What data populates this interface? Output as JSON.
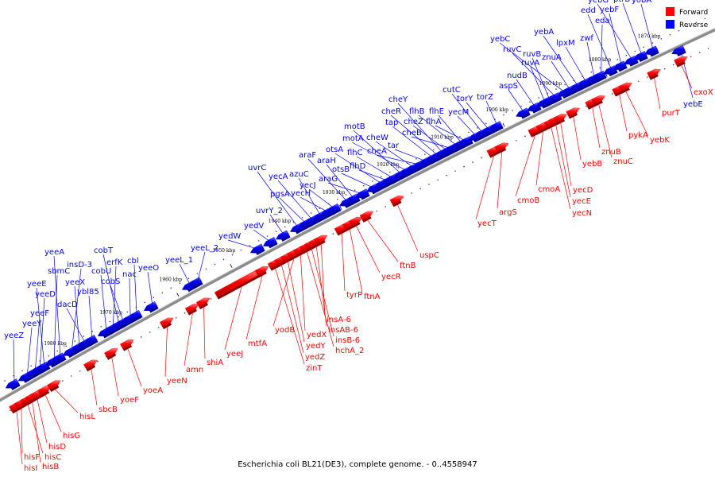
{
  "caption": "Escherichia coli BL21(DE3), complete genome. - 0..4558947",
  "legend": [
    {
      "label": "Forward",
      "color": "#ff0000"
    },
    {
      "label": "Reverse",
      "color": "#0000ff"
    }
  ],
  "colors": {
    "forward": "#ff0000",
    "reverse": "#0000ff",
    "backbone": "#888888"
  },
  "ticks": [
    "1870 kbp",
    "1880 kbp",
    "1890 kbp",
    "1900 kbp",
    "1910 kbp",
    "1920 kbp",
    "1930 kbp",
    "1940 kbp",
    "1950 kbp",
    "1960 kbp",
    "1970 kbp",
    "1980 kbp"
  ],
  "reverse_genes": [
    "yeeZ",
    "yeeY",
    "yeeF",
    "yeeD",
    "yeeE",
    "sbmC",
    "yeeA",
    "insD-3",
    "yeeX",
    "dacD",
    "ybl85",
    "cobU",
    "erfK",
    "cobT",
    "cobS",
    "nac",
    "cbl",
    "yeeO",
    "yeeL_1",
    "yeeL_2",
    "yedW",
    "yedV",
    "uvrY_2",
    "uvrC",
    "pgsA",
    "yecA",
    "azuC",
    "yecH",
    "yecJ",
    "araF",
    "araH",
    "araG",
    "otsB",
    "otsA",
    "flhD",
    "flhC",
    "motB",
    "motA",
    "cheW",
    "cheA",
    "tar",
    "tap",
    "cheR",
    "cheY",
    "cheZ",
    "cheB",
    "flhB",
    "flhE",
    "flhA",
    "yecM",
    "cutC",
    "torY",
    "torZ",
    "aspS",
    "nudB",
    "ruvA",
    "ruvB",
    "ruvC",
    "yebC",
    "znuA",
    "yebA",
    "lpxM",
    "zwf",
    "eda",
    "edd",
    "yebF",
    "yebG",
    "ptrB",
    "yobA",
    "yebE"
  ],
  "forward_genes": [
    "hisI",
    "hisF",
    "hisC",
    "hisB",
    "hisD",
    "hisG",
    "hisL",
    "sbcB",
    "yoeF",
    "yoeA",
    "yeeN",
    "amn",
    "shiA",
    "yeeJ",
    "mtfA",
    "zinT",
    "yedZ",
    "yedY",
    "yodB",
    "yedX",
    "hchA_2",
    "insB-6",
    "insAB-6",
    "insA-6",
    "tyrP",
    "ftnA",
    "yecR",
    "ftnB",
    "uspC",
    "yecT",
    "argS",
    "cmoB",
    "cmoA",
    "yecN",
    "yecE",
    "yecD",
    "yebB",
    "znuB",
    "znuC",
    "pykA",
    "yebK",
    "purT",
    "exoX"
  ]
}
